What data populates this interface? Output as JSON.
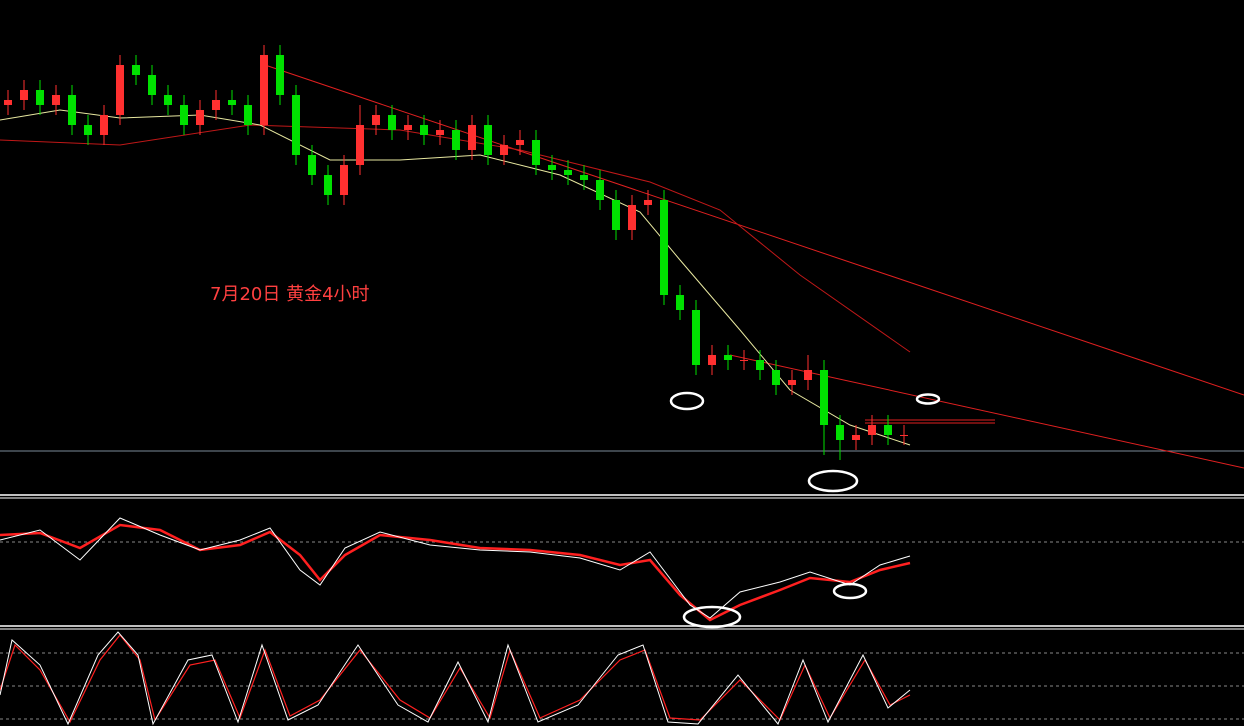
{
  "chart_data": {
    "type": "candlestick",
    "title": "7月20日 黄金4小时",
    "up_color": "#ff3030",
    "down_color": "#00e000",
    "ylim": [
      -2,
      97
    ],
    "open": [
      76,
      77,
      79,
      76,
      78,
      72,
      70,
      74,
      84,
      82,
      78,
      76,
      72,
      75,
      77,
      76,
      72,
      86,
      78,
      66,
      62,
      58,
      64,
      72,
      74,
      71,
      72,
      70,
      71,
      67,
      72,
      66,
      68,
      69,
      64,
      63,
      62,
      61,
      57,
      51,
      56,
      57,
      38,
      35,
      24,
      26,
      25,
      25,
      23,
      20,
      21,
      23,
      12,
      9,
      10,
      12,
      10
    ],
    "close": [
      77,
      79,
      76,
      78,
      72,
      70,
      74,
      84,
      82,
      78,
      76,
      72,
      75,
      77,
      76,
      72,
      86,
      78,
      66,
      62,
      58,
      64,
      72,
      74,
      71,
      72,
      70,
      71,
      67,
      72,
      66,
      68,
      69,
      64,
      63,
      62,
      61,
      57,
      51,
      56,
      57,
      38,
      35,
      24,
      26,
      25,
      25,
      23,
      20,
      21,
      23,
      12,
      9,
      10,
      12,
      10,
      10
    ],
    "high": [
      79,
      81,
      81,
      80,
      80,
      74,
      76,
      86,
      86,
      84,
      80,
      78,
      77,
      79,
      79,
      78,
      88,
      88,
      80,
      68,
      64,
      66,
      76,
      76,
      76,
      74,
      74,
      73,
      73,
      74,
      74,
      70,
      71,
      71,
      66,
      65,
      64,
      63,
      59,
      58,
      59,
      59,
      40,
      37,
      28,
      28,
      27,
      27,
      25,
      23,
      26,
      25,
      14,
      12,
      14,
      14,
      12
    ],
    "low": [
      74,
      75,
      74,
      74,
      70,
      68,
      68,
      72,
      80,
      76,
      74,
      70,
      70,
      73,
      74,
      70,
      70,
      76,
      64,
      60,
      56,
      56,
      62,
      70,
      69,
      69,
      68,
      68,
      65,
      65,
      64,
      64,
      66,
      62,
      61,
      60,
      59,
      55,
      49,
      49,
      54,
      36,
      33,
      22,
      22,
      23,
      23,
      21,
      18,
      18,
      19,
      6,
      5,
      7,
      8,
      8,
      8
    ]
  }
}
